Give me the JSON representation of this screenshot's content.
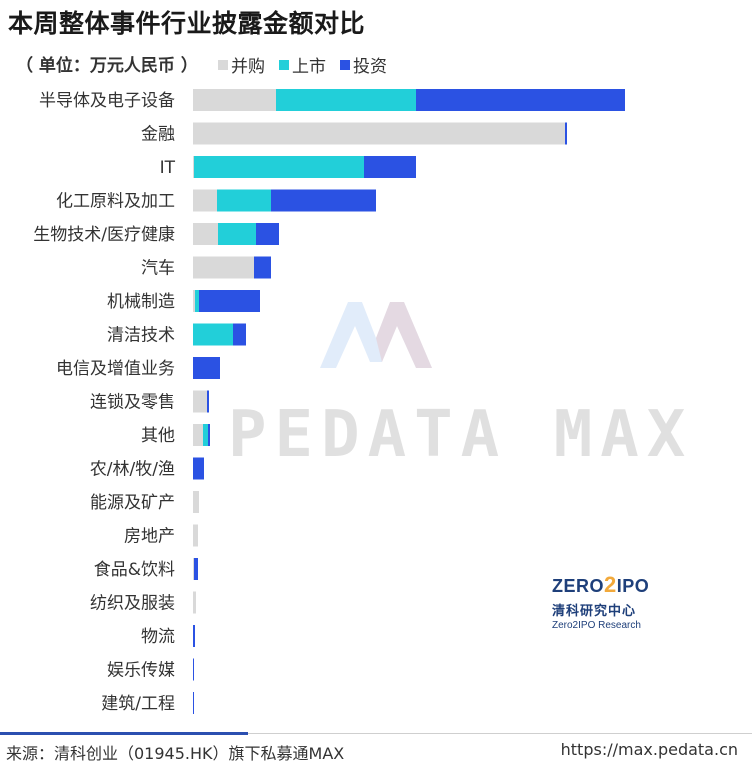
{
  "header": {
    "title": "本周整体事件行业披露金额对比",
    "unit": "（ 单位：万元人民币 ）"
  },
  "colors": {
    "mna": "#d9d9d9",
    "ipo": "#22cfd9",
    "investment": "#2b52e3"
  },
  "legend": [
    {
      "label": "并购",
      "color": "#d9d9d9"
    },
    {
      "label": "上市",
      "color": "#22cfd9"
    },
    {
      "label": "投资",
      "color": "#2b52e3"
    }
  ],
  "chart_data": {
    "type": "bar",
    "orientation": "horizontal",
    "stacked": true,
    "categories": [
      "半导体及电子设备",
      "金融",
      "IT",
      "化工原料及加工",
      "生物技术/医疗健康",
      "汽车",
      "机械制造",
      "清洁技术",
      "电信及增值业务",
      "连锁及零售",
      "其他",
      "农/林/牧/渔",
      "能源及矿产",
      "房地产",
      "食品&饮料",
      "纺织及服装",
      "物流",
      "娱乐传媒",
      "建筑/工程"
    ],
    "series": [
      {
        "name": "并购",
        "values": [
          83,
          372,
          1,
          24,
          25,
          61,
          2,
          0,
          0,
          14,
          10,
          0,
          6,
          5,
          1,
          3,
          0,
          0,
          0
        ]
      },
      {
        "name": "上市",
        "values": [
          140,
          0,
          170,
          54,
          38,
          0,
          4,
          40,
          0,
          0,
          5,
          0,
          0,
          0,
          0,
          0,
          0,
          0,
          0
        ]
      },
      {
        "name": "投资",
        "values": [
          209,
          2,
          52,
          105,
          23,
          17,
          61,
          13,
          27,
          2,
          2,
          11,
          0,
          0,
          4,
          0,
          2,
          1,
          1
        ]
      }
    ],
    "grid": false,
    "legend_position": "top"
  },
  "watermark": {
    "text": "PEDATA MAX"
  },
  "logo": {
    "main_a": "ZERO",
    "main_two": "2",
    "main_b": "IPO",
    "cn": "清科研究中心",
    "en": "Zero2IPO Research"
  },
  "footer": {
    "source": "来源：清科创业（01945.HK）旗下私募通MAX",
    "url": "https://max.pedata.cn"
  }
}
